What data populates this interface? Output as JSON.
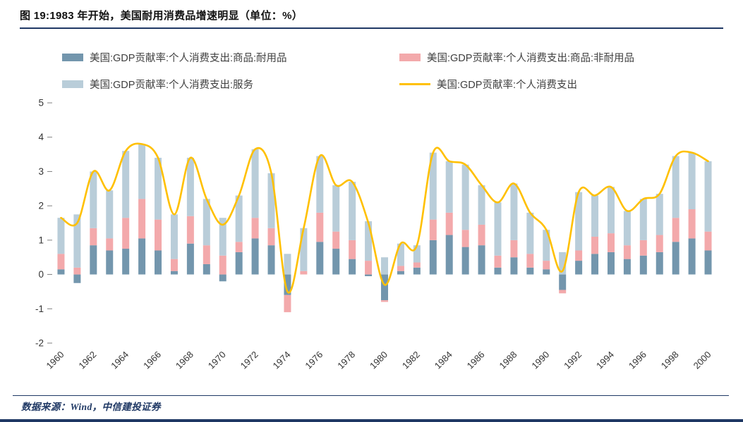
{
  "header": {
    "title": "图 19:1983 年开始，美国耐用消费品增速明显（单位：%）"
  },
  "legend": {
    "items": [
      {
        "label": "美国:GDP贡献率:个人消费支出:商品:耐用品",
        "type": "bar",
        "color": "#7396ad"
      },
      {
        "label": "美国:GDP贡献率:个人消费支出:商品:非耐用品",
        "type": "bar",
        "color": "#f3a9ab"
      },
      {
        "label": "美国:GDP贡献率:个人消费支出:服务",
        "type": "bar",
        "color": "#b9cdd9"
      },
      {
        "label": "美国:GDP贡献率:个人消费支出",
        "type": "line",
        "color": "#ffc000"
      }
    ]
  },
  "footer": {
    "source": "数据来源：Wind，中信建投证券"
  },
  "colors": {
    "rule_navy": "#1f3864",
    "durables_bar": "#7396ad",
    "nondurables_bar": "#f3a9ab",
    "services_bar": "#b9cdd9",
    "total_line": "#ffc000"
  },
  "chart_data": {
    "type": "bar",
    "subtype": "stacked-bars-with-line-overlay",
    "title": "图 19:1983 年开始，美国耐用消费品增速明显（单位：%）",
    "xlabel": "",
    "ylabel": "",
    "grid": false,
    "legend_position": "top",
    "ylim": [
      -2,
      5
    ],
    "yticks": [
      -2,
      -1,
      0,
      1,
      2,
      3,
      4,
      5
    ],
    "xtick_step": 2,
    "x": [
      1960,
      1961,
      1962,
      1963,
      1964,
      1965,
      1966,
      1967,
      1968,
      1969,
      1970,
      1971,
      1972,
      1973,
      1974,
      1975,
      1976,
      1977,
      1978,
      1979,
      1980,
      1981,
      1982,
      1983,
      1984,
      1985,
      1986,
      1987,
      1988,
      1989,
      1990,
      1991,
      1992,
      1993,
      1994,
      1995,
      1996,
      1997,
      1998,
      1999,
      2000
    ],
    "series": [
      {
        "name": "美国:GDP贡献率:个人消费支出:商品:耐用品",
        "color": "#7396ad",
        "values": [
          0.15,
          -0.25,
          0.85,
          0.7,
          0.75,
          1.05,
          0.7,
          0.1,
          0.9,
          0.3,
          -0.2,
          0.65,
          1.05,
          0.85,
          -0.6,
          0.0,
          0.95,
          0.75,
          0.45,
          -0.05,
          -0.75,
          0.1,
          0.2,
          1.0,
          1.15,
          0.8,
          0.85,
          0.2,
          0.5,
          0.2,
          0.15,
          -0.45,
          0.4,
          0.6,
          0.65,
          0.45,
          0.55,
          0.65,
          0.95,
          1.05,
          0.7
        ]
      },
      {
        "name": "美国:GDP贡献率:个人消费支出:商品:非耐用品",
        "color": "#f3a9ab",
        "values": [
          0.45,
          0.2,
          0.5,
          0.35,
          0.9,
          1.15,
          0.9,
          0.35,
          0.8,
          0.55,
          0.55,
          0.3,
          0.6,
          0.5,
          -0.5,
          0.1,
          0.85,
          0.5,
          0.55,
          0.4,
          -0.05,
          0.15,
          0.15,
          0.6,
          0.65,
          0.5,
          0.6,
          0.35,
          0.5,
          0.4,
          0.25,
          -0.1,
          0.3,
          0.5,
          0.55,
          0.4,
          0.45,
          0.5,
          0.7,
          0.85,
          0.55
        ]
      },
      {
        "name": "美国:GDP贡献率:个人消费支出:服务",
        "color": "#b9cdd9",
        "values": [
          1.05,
          1.55,
          1.65,
          1.4,
          1.95,
          1.6,
          1.8,
          1.3,
          1.7,
          1.35,
          1.1,
          1.35,
          2.0,
          1.6,
          0.6,
          1.25,
          1.65,
          1.35,
          1.7,
          1.15,
          0.5,
          0.65,
          0.5,
          1.95,
          1.5,
          1.9,
          1.15,
          1.55,
          1.65,
          1.2,
          0.9,
          0.65,
          1.7,
          1.2,
          1.35,
          1.0,
          1.2,
          1.2,
          1.8,
          1.65,
          2.05
        ]
      }
    ],
    "line": {
      "name": "美国:GDP贡献率:个人消费支出",
      "color": "#ffc000",
      "values": [
        1.65,
        1.5,
        3.0,
        2.45,
        3.6,
        3.8,
        3.4,
        1.75,
        3.4,
        2.2,
        1.45,
        2.3,
        3.65,
        2.95,
        -0.5,
        1.35,
        3.45,
        2.6,
        2.7,
        1.5,
        -0.3,
        0.9,
        0.85,
        3.55,
        3.3,
        3.2,
        2.6,
        2.1,
        2.65,
        1.8,
        1.3,
        0.1,
        2.4,
        2.3,
        2.55,
        1.85,
        2.2,
        2.35,
        3.45,
        3.55,
        3.3
      ]
    }
  }
}
